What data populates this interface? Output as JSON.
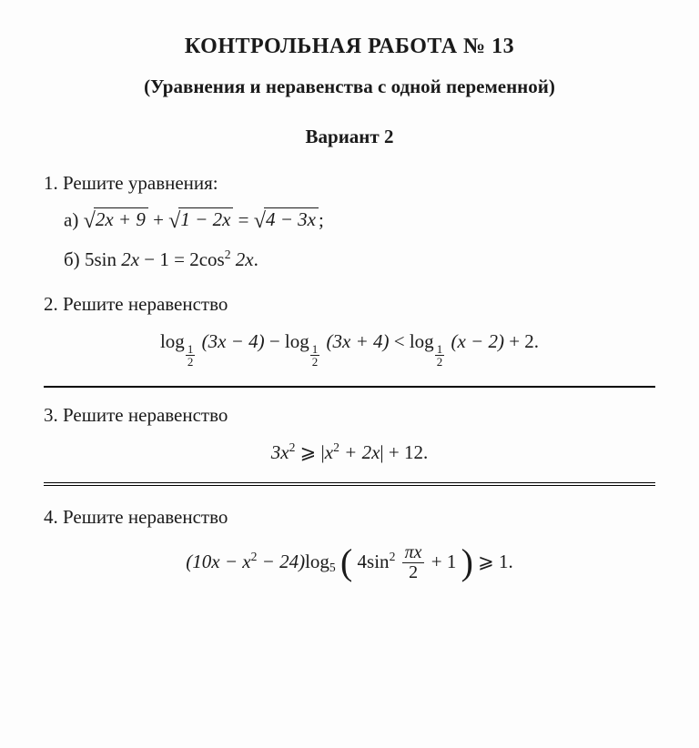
{
  "header": {
    "title": "КОНТРОЛЬНАЯ РАБОТА № 13",
    "subtitle": "(Уравнения и неравенства с одной переменной)",
    "variant": "Вариант 2"
  },
  "tasks": [
    {
      "number": "1.",
      "prompt": "Решите уравнения:",
      "subtasks": [
        {
          "letter": "а)",
          "type": "radical-equation",
          "terms": {
            "a": "2x + 9",
            "b": "1 − 2x",
            "c": "4 − 3x"
          },
          "suffix": ";"
        },
        {
          "letter": "б)",
          "type": "trig-equation",
          "lhs_coeff": "5",
          "lhs_fn": "sin",
          "lhs_arg": "2x",
          "lhs_const": " − 1",
          "rhs_coeff": "2",
          "rhs_fn": "cos",
          "rhs_power": "2",
          "rhs_arg": "2x",
          "suffix": "."
        }
      ]
    },
    {
      "number": "2.",
      "prompt": "Решите неравенство",
      "formula": {
        "type": "log-inequality",
        "log_base": {
          "num": "1",
          "den": "2"
        },
        "lhs1": "(3x − 4)",
        "op1": " − ",
        "lhs2": "(3x + 4)",
        "cmp": " < ",
        "rhs": "(x − 2)",
        "tail": " + 2."
      },
      "divider_after": "single"
    },
    {
      "number": "3.",
      "prompt": "Решите неравенство",
      "formula": {
        "type": "abs-inequality",
        "lhs": "3x",
        "lhs_power": "2",
        "cmp": " ⩾ ",
        "abs_inner_a": "x",
        "abs_inner_a_power": "2",
        "abs_inner_rest": " + 2x",
        "tail": " + 12."
      },
      "divider_after": "double"
    },
    {
      "number": "4.",
      "prompt": "Решите неравенство",
      "formula": {
        "type": "log5-inequality",
        "poly": "(10x − x",
        "poly_power": "2",
        "poly_rest": " − 24)",
        "log_label": "log",
        "log_base": "5",
        "inner_coeff": "4",
        "inner_fn": "sin",
        "inner_power": "2",
        "inner_frac": {
          "num": "πx",
          "den": "2"
        },
        "inner_tail": " + 1",
        "cmp": " ⩾ ",
        "rhs": "1."
      }
    }
  ],
  "style": {
    "font_family": "Georgia, Times New Roman, serif",
    "text_color": "#1a1a1a",
    "background": "#fdfdfd",
    "title_fontsize": 24,
    "subtitle_fontsize": 21,
    "body_fontsize": 21,
    "rule_single_weight": 2,
    "rule_double_style": "double"
  }
}
